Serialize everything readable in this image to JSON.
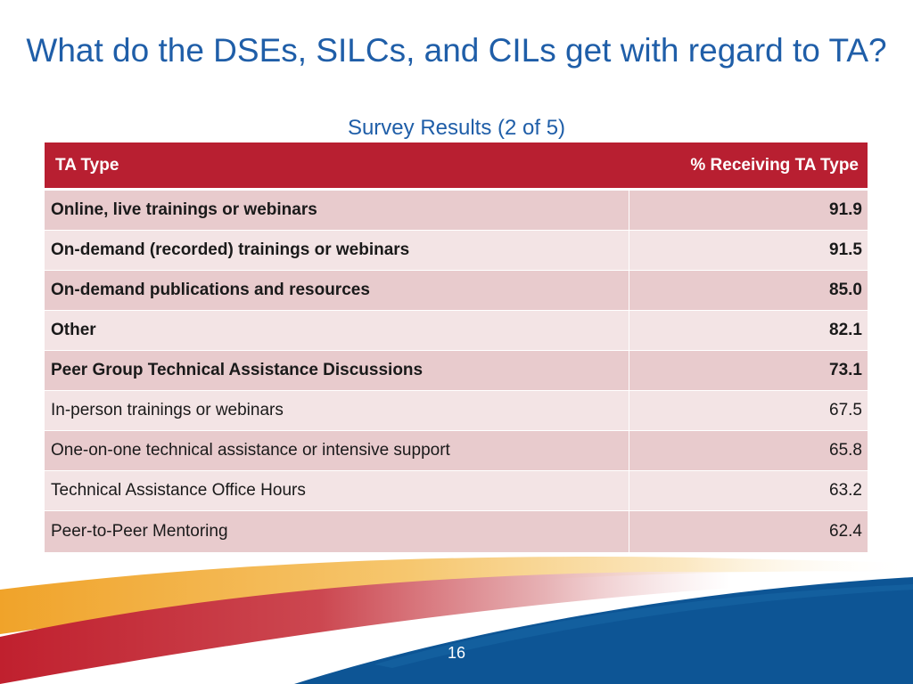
{
  "slide": {
    "title": "What do the DSEs, SILCs, and CILs get with regard to TA?",
    "subtitle": "Survey Results (2 of 5)",
    "page_number": "16"
  },
  "table": {
    "headers": [
      "TA Type",
      "% Receiving TA Type"
    ],
    "rows": [
      {
        "label": "Online, live trainings or webinars",
        "value": "91.9",
        "bold": true
      },
      {
        "label": "On-demand (recorded) trainings or webinars",
        "value": "91.5",
        "bold": true
      },
      {
        "label": "On-demand publications and resources",
        "value": "85.0",
        "bold": true
      },
      {
        "label": "Other",
        "value": "82.1",
        "bold": true
      },
      {
        "label": "Peer Group Technical Assistance Discussions",
        "value": "73.1",
        "bold": true
      },
      {
        "label": "In-person trainings or webinars",
        "value": "67.5",
        "bold": false
      },
      {
        "label": "One-on-one technical assistance or intensive support",
        "value": "65.8",
        "bold": false
      },
      {
        "label": "Technical Assistance Office Hours",
        "value": "63.2",
        "bold": false
      },
      {
        "label": "Peer-to-Peer Mentoring",
        "value": "62.4",
        "bold": false
      }
    ]
  },
  "colors": {
    "title": "#1f5ea8",
    "header_bg": "#b81f31",
    "row_odd": "#e8cbcd",
    "row_even": "#f3e4e5",
    "footer_blue": "#0d5595",
    "footer_red": "#c0202e",
    "footer_orange": "#f0a32a"
  }
}
